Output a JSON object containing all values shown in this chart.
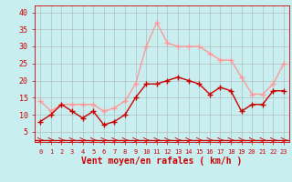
{
  "hours": [
    0,
    1,
    2,
    3,
    4,
    5,
    6,
    7,
    8,
    9,
    10,
    11,
    12,
    13,
    14,
    15,
    16,
    17,
    18,
    19,
    20,
    21,
    22,
    23
  ],
  "vent_moyen": [
    8,
    10,
    13,
    11,
    9,
    11,
    7,
    8,
    10,
    15,
    19,
    19,
    20,
    21,
    20,
    19,
    16,
    18,
    17,
    11,
    13,
    13,
    17,
    17
  ],
  "rafales": [
    14,
    11,
    13,
    13,
    13,
    13,
    11,
    12,
    14,
    19,
    30,
    37,
    31,
    30,
    30,
    30,
    28,
    26,
    26,
    21,
    16,
    16,
    19,
    25
  ],
  "color_moyen": "#cc0000",
  "color_rafales": "#ff9999",
  "background": "#c8eef0",
  "grid_color": "#aaaaaa",
  "xlabel": "Vent moyen/en rafales ( km/h )",
  "xlabel_color": "#cc0000",
  "tick_color": "#cc0000",
  "ylim": [
    2,
    42
  ],
  "yticks": [
    5,
    10,
    15,
    20,
    25,
    30,
    35,
    40
  ],
  "xlim": [
    -0.5,
    23.5
  ],
  "marker": "+",
  "markersize": 4,
  "linewidth": 1.0
}
